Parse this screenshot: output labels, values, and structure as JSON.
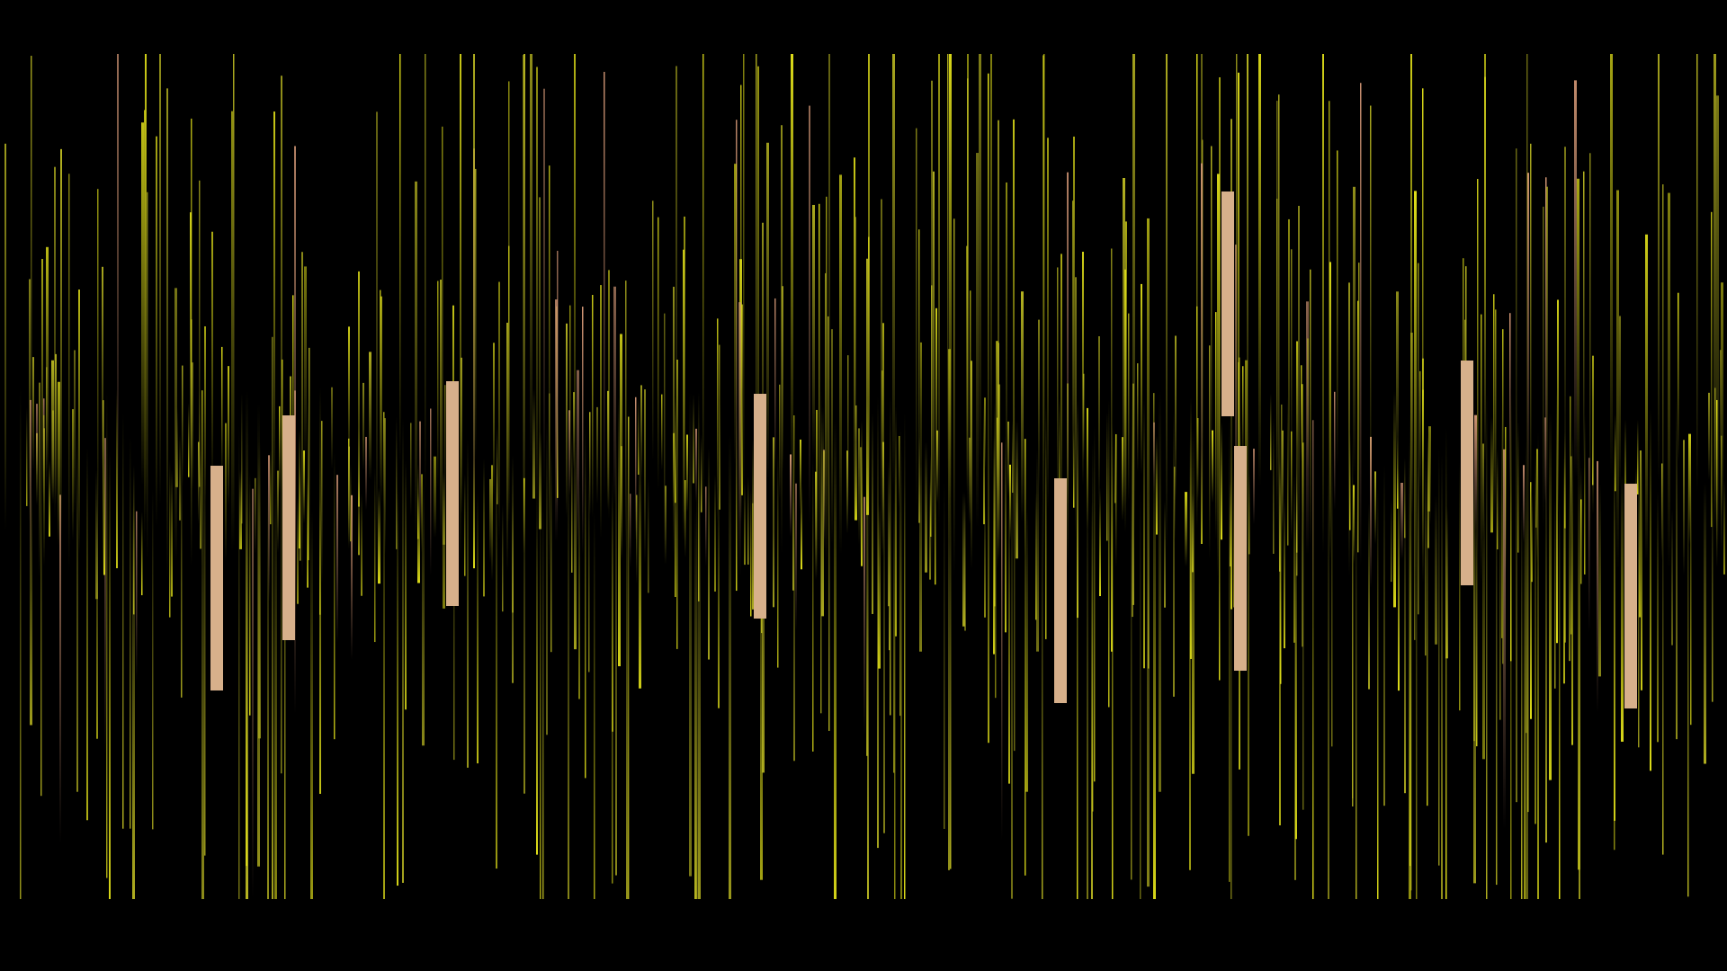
{
  "scene": {
    "subject": "abstract-vertical-light-streaks",
    "colors": {
      "background": "#000000",
      "streak_yellow": "#e3e21a",
      "streak_olive": "#b7b521",
      "streak_dim": "#6e6a10",
      "streak_peach": "#d79a78",
      "block_fill": "#d7b08b"
    }
  }
}
